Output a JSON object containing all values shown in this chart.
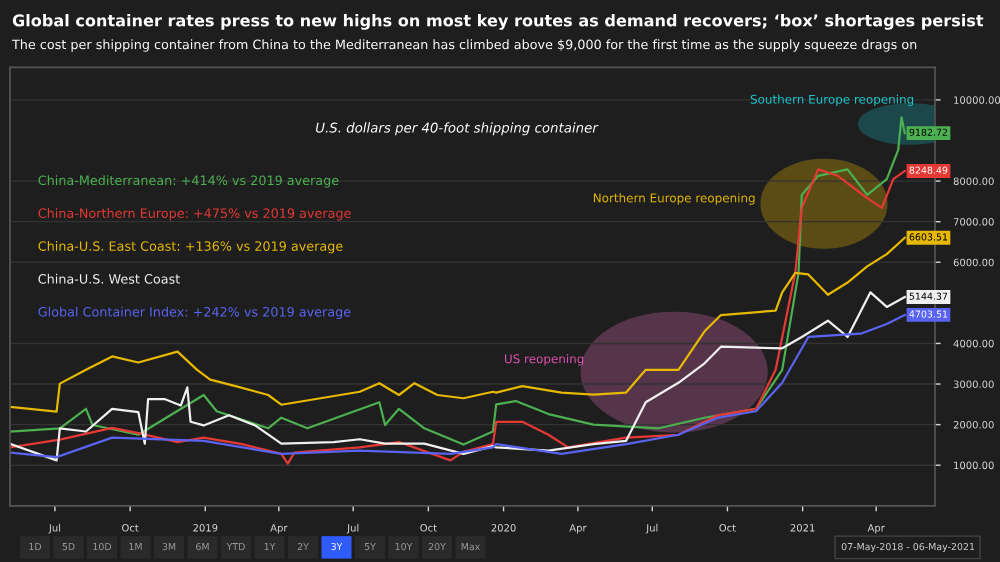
{
  "chart_data": {
    "type": "line",
    "title": "Global container rates press to new highs on most key routes as demand recovers; ‘box’ shortages persist",
    "subtitle": "The cost per shipping container from China to the Mediterranean has climbed above $9,000 for the first time as the supply squeeze drags on",
    "xlim": [
      "2018-05-07",
      "2021-06-12"
    ],
    "xticks": [
      {
        "value": "2018-07-01",
        "label": "Jul"
      },
      {
        "value": "2018-10-01",
        "label": "Oct"
      },
      {
        "value": "2019-01-01",
        "label": "2019"
      },
      {
        "value": "2019-04-01",
        "label": "Apr"
      },
      {
        "value": "2019-07-01",
        "label": "Jul"
      },
      {
        "value": "2019-10-01",
        "label": "Oct"
      },
      {
        "value": "2020-01-01",
        "label": "2020"
      },
      {
        "value": "2020-04-01",
        "label": "Apr"
      },
      {
        "value": "2020-07-01",
        "label": "Jul"
      },
      {
        "value": "2020-10-01",
        "label": "Oct"
      },
      {
        "value": "2021-01-01",
        "label": "2021"
      },
      {
        "value": "2021-04-01",
        "label": "Apr"
      }
    ],
    "ylim": [
      0,
      10800
    ],
    "yticks": [
      {
        "value": 1000,
        "label": "1000.00"
      },
      {
        "value": 2000,
        "label": "2000.00"
      },
      {
        "value": 3000,
        "label": "3000.00"
      },
      {
        "value": 4000,
        "label": "4000.00"
      },
      {
        "value": 6000,
        "label": "6000.00"
      },
      {
        "value": 7000,
        "label": "7000.00"
      },
      {
        "value": 8000,
        "label": "8000.00"
      },
      {
        "value": 10000,
        "label": "10000.00"
      }
    ],
    "grid": "y",
    "legend": "top left",
    "line_style": "solid",
    "series": [
      {
        "name": "China-Mediterranean: +414% vs 2019 average",
        "color": "#4caf50",
        "x": [
          "2018-05-07",
          "2018-07-07",
          "2018-08-08",
          "2018-08-16",
          "2018-10-11",
          "2018-12-30",
          "2019-01-15",
          "2019-03-19",
          "2019-04-04",
          "2019-05-06",
          "2019-08-02",
          "2019-08-09",
          "2019-08-26",
          "2019-09-26",
          "2019-11-13",
          "2019-12-19",
          "2019-12-23",
          "2020-01-16",
          "2020-02-25",
          "2020-04-20",
          "2020-07-09",
          "2020-09-03",
          "2020-11-05",
          "2020-12-07",
          "2020-12-27",
          "2020-12-31",
          "2021-01-20",
          "2021-02-25",
          "2021-03-21",
          "2021-04-14",
          "2021-04-28",
          "2021-05-02",
          "2021-05-06"
        ],
        "values": [
          1830,
          1910,
          2390,
          1990,
          1750,
          2730,
          2330,
          1910,
          2170,
          1910,
          2550,
          1990,
          2390,
          1910,
          1510,
          1830,
          2500,
          2580,
          2260,
          2000,
          1910,
          2170,
          2390,
          3350,
          5740,
          7660,
          8130,
          8290,
          7660,
          8050,
          8770,
          9570,
          9182.72
        ],
        "value_labels": [
          null,
          null,
          null,
          null,
          null,
          null,
          null,
          null,
          null,
          null,
          null,
          null,
          null,
          null,
          null,
          null,
          null,
          null,
          null,
          null,
          null,
          null,
          null,
          null,
          null,
          null,
          null,
          null,
          null,
          null,
          null,
          null,
          "9182.72"
        ]
      },
      {
        "name": "China-Northern Europe: +475% vs 2019 average",
        "color": "#e53935",
        "x": [
          "2018-05-07",
          "2018-07-07",
          "2018-09-09",
          "2018-10-11",
          "2018-11-28",
          "2018-12-30",
          "2019-02-15",
          "2019-04-04",
          "2019-04-12",
          "2019-04-20",
          "2019-07-09",
          "2019-08-26",
          "2019-10-28",
          "2019-11-13",
          "2019-12-19",
          "2019-12-23",
          "2020-01-24",
          "2020-02-25",
          "2020-03-20",
          "2020-05-30",
          "2020-08-02",
          "2020-09-19",
          "2020-11-05",
          "2020-11-29",
          "2020-12-23",
          "2020-12-31",
          "2021-01-20",
          "2021-02-13",
          "2021-03-21",
          "2021-04-08",
          "2021-04-22",
          "2021-05-06"
        ],
        "values": [
          1440,
          1630,
          1920,
          1790,
          1570,
          1680,
          1520,
          1280,
          1040,
          1310,
          1440,
          1570,
          1120,
          1330,
          1520,
          2070,
          2070,
          1750,
          1440,
          1680,
          1750,
          2230,
          2390,
          3350,
          5740,
          7340,
          8290,
          8130,
          7580,
          7340,
          8050,
          8248.49
        ],
        "value_labels": [
          null,
          null,
          null,
          null,
          null,
          null,
          null,
          null,
          null,
          null,
          null,
          null,
          null,
          null,
          null,
          null,
          null,
          null,
          null,
          null,
          null,
          null,
          null,
          null,
          null,
          null,
          null,
          null,
          null,
          null,
          null,
          "8248.49"
        ]
      },
      {
        "name": "China-U.S. East Coast: +136% vs 2019 average",
        "color": "#e6b800",
        "x": [
          "2018-05-07",
          "2018-07-03",
          "2018-07-07",
          "2018-08-08",
          "2018-09-09",
          "2018-10-11",
          "2018-11-28",
          "2018-12-22",
          "2019-01-07",
          "2019-02-07",
          "2019-03-19",
          "2019-04-04",
          "2019-05-22",
          "2019-07-09",
          "2019-08-02",
          "2019-08-26",
          "2019-09-14",
          "2019-10-12",
          "2019-11-13",
          "2019-12-19",
          "2019-12-23",
          "2020-01-24",
          "2020-03-12",
          "2020-04-20",
          "2020-05-30",
          "2020-06-23",
          "2020-08-02",
          "2020-09-03",
          "2020-09-23",
          "2020-11-29",
          "2020-12-07",
          "2020-12-23",
          "2021-01-08",
          "2021-02-01",
          "2021-02-25",
          "2021-03-21",
          "2021-04-14",
          "2021-05-06"
        ],
        "values": [
          2440,
          2320,
          3010,
          3350,
          3680,
          3530,
          3800,
          3350,
          3110,
          2950,
          2730,
          2490,
          2650,
          2810,
          3020,
          2730,
          3020,
          2730,
          2650,
          2810,
          2790,
          2950,
          2790,
          2740,
          2790,
          3350,
          3350,
          4300,
          4700,
          4810,
          5260,
          5740,
          5700,
          5200,
          5500,
          5900,
          6200,
          6603.51
        ],
        "value_labels": [
          null,
          null,
          null,
          null,
          null,
          null,
          null,
          null,
          null,
          null,
          null,
          null,
          null,
          null,
          null,
          null,
          null,
          null,
          null,
          null,
          null,
          null,
          null,
          null,
          null,
          null,
          null,
          null,
          null,
          null,
          null,
          null,
          null,
          null,
          null,
          null,
          null,
          "6603.51"
        ]
      },
      {
        "name": "China-U.S. West Coast",
        "color": "#f0f0f0",
        "x": [
          "2018-05-07",
          "2018-07-03",
          "2018-07-07",
          "2018-08-08",
          "2018-09-09",
          "2018-10-11",
          "2018-10-19",
          "2018-10-23",
          "2018-11-12",
          "2018-12-02",
          "2018-12-10",
          "2018-12-14",
          "2018-12-30",
          "2019-01-30",
          "2019-03-03",
          "2019-04-04",
          "2019-06-07",
          "2019-07-09",
          "2019-08-09",
          "2019-09-26",
          "2019-11-13",
          "2019-12-19",
          "2019-12-23",
          "2020-02-25",
          "2020-04-20",
          "2020-05-30",
          "2020-06-23",
          "2020-08-02",
          "2020-09-03",
          "2020-09-23",
          "2020-12-07",
          "2020-12-31",
          "2021-02-01",
          "2021-02-25",
          "2021-03-25",
          "2021-04-14",
          "2021-05-06"
        ],
        "values": [
          1530,
          1120,
          1910,
          1830,
          2390,
          2310,
          1530,
          2630,
          2630,
          2470,
          2920,
          2070,
          1980,
          2230,
          1980,
          1530,
          1570,
          1640,
          1530,
          1530,
          1280,
          1470,
          1440,
          1360,
          1520,
          1600,
          2550,
          3030,
          3510,
          3920,
          3880,
          4160,
          4560,
          4160,
          5260,
          4900,
          5144.37
        ],
        "value_labels": [
          null,
          null,
          null,
          null,
          null,
          null,
          null,
          null,
          null,
          null,
          null,
          null,
          null,
          null,
          null,
          null,
          null,
          null,
          null,
          null,
          null,
          null,
          null,
          null,
          null,
          null,
          null,
          null,
          null,
          null,
          null,
          null,
          null,
          null,
          null,
          null,
          "5144.37"
        ]
      },
      {
        "name": "Global Container Index: +242% vs 2019 average",
        "color": "#5a63f0",
        "x": [
          "2018-05-07",
          "2018-07-03",
          "2018-09-09",
          "2018-12-30",
          "2019-04-04",
          "2019-07-09",
          "2019-10-28",
          "2019-12-19",
          "2019-12-23",
          "2020-03-12",
          "2020-05-30",
          "2020-08-02",
          "2020-09-19",
          "2020-11-05",
          "2020-12-07",
          "2021-01-08",
          "2021-03-13",
          "2021-04-14",
          "2021-05-06"
        ],
        "values": [
          1310,
          1200,
          1680,
          1600,
          1280,
          1360,
          1280,
          1440,
          1520,
          1280,
          1520,
          1750,
          2170,
          2330,
          3030,
          4160,
          4240,
          4480,
          4703.51
        ],
        "value_labels": [
          null,
          null,
          null,
          null,
          null,
          null,
          null,
          null,
          null,
          null,
          null,
          null,
          null,
          null,
          null,
          null,
          null,
          null,
          "4703.51"
        ]
      }
    ],
    "annotations": [
      "U.S. dollars per 40-foot shipping container",
      "Southern Europe reopening",
      "Northern Europe reopening",
      "US reopening",
      "1D",
      "5D",
      "10D",
      "1M",
      "3M",
      "6M",
      "YTD",
      "1Y",
      "2Y",
      "3Y",
      "5Y",
      "10Y",
      "20Y",
      "Max",
      "07-May-2018 - 06-May-2021"
    ]
  }
}
